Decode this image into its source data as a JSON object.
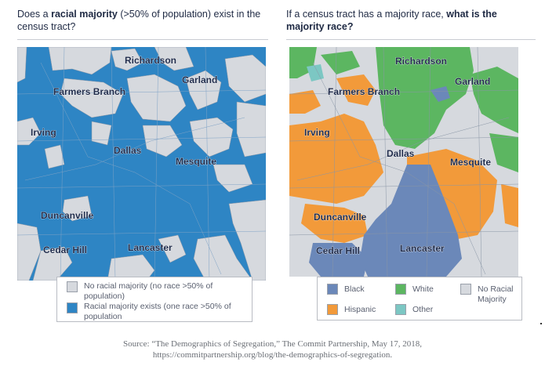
{
  "left_panel": {
    "title_pre": "Does a ",
    "title_bold": "racial majority",
    "title_post": " (>50% of population) exist in the census tract?",
    "cities": [
      "Richardson",
      "Garland",
      "Farmers Branch",
      "Irving",
      "Dallas",
      "Mesquite",
      "Duncanville",
      "Cedar Hill",
      "Lancaster"
    ],
    "legend": [
      {
        "label": "No racial majority (no race >50% of population)",
        "color": "#d6d9de"
      },
      {
        "label": "Racial majority exists (one race >50% of population",
        "color": "#2e85c4"
      }
    ]
  },
  "right_panel": {
    "title_pre": "If a census tract has a majority race, ",
    "title_bold": "what is the majority race?",
    "cities": [
      "Richardson",
      "Garland",
      "Farmers Branch",
      "Irving",
      "Dallas",
      "Mesquite",
      "Duncanville",
      "Cedar Hill",
      "Lancaster"
    ],
    "legend": [
      {
        "label": "Black",
        "color": "#6b88b9"
      },
      {
        "label": "White",
        "color": "#5cb661"
      },
      {
        "label": "No Racial Majority",
        "color": "#d6d9de"
      },
      {
        "label": "Hispanic",
        "color": "#f29a3a"
      },
      {
        "label": "Other",
        "color": "#7cc7c3"
      }
    ]
  },
  "source": {
    "line1": "Source: “The Demographics of Segregation,” The Commit Partnership, May 17, 2018,",
    "line2": "https://commitpartnership.org/blog/the-demographics-of-segregation."
  }
}
